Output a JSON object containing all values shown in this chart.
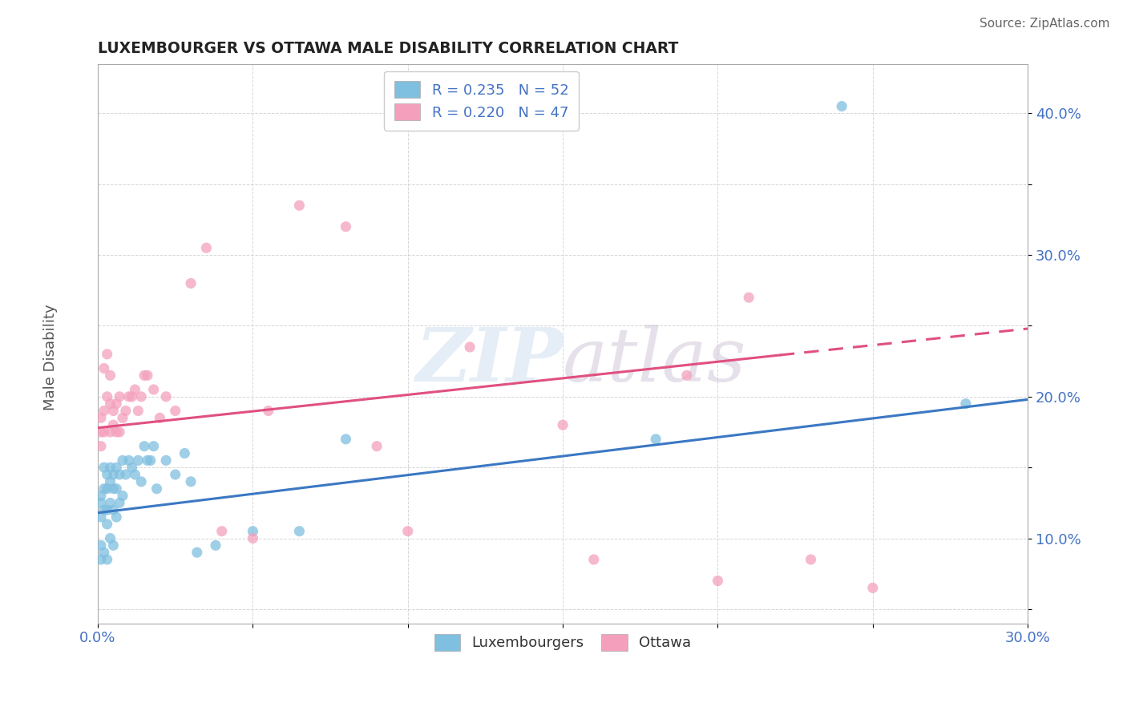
{
  "title": "LUXEMBOURGER VS OTTAWA MALE DISABILITY CORRELATION CHART",
  "source": "Source: ZipAtlas.com",
  "xlabel_label": "Luxembourgers",
  "ylabel_label": "Male Disability",
  "x_min": 0.0,
  "x_max": 0.3,
  "y_min": 0.04,
  "y_max": 0.435,
  "blue_R": 0.235,
  "blue_N": 52,
  "pink_R": 0.22,
  "pink_N": 47,
  "blue_color": "#7fbfdf",
  "pink_color": "#f4a0bc",
  "blue_line_color": "#3b78c3",
  "pink_line_color": "#e05080",
  "blue_line_start_y": 0.118,
  "blue_line_end_y": 0.198,
  "pink_line_start_y": 0.178,
  "pink_line_end_y": 0.248,
  "blue_scatter_x": [
    0.001,
    0.001,
    0.001,
    0.001,
    0.001,
    0.002,
    0.002,
    0.002,
    0.002,
    0.003,
    0.003,
    0.003,
    0.003,
    0.003,
    0.004,
    0.004,
    0.004,
    0.004,
    0.005,
    0.005,
    0.005,
    0.005,
    0.006,
    0.006,
    0.006,
    0.007,
    0.007,
    0.008,
    0.008,
    0.009,
    0.01,
    0.011,
    0.012,
    0.013,
    0.014,
    0.015,
    0.016,
    0.017,
    0.018,
    0.019,
    0.022,
    0.025,
    0.028,
    0.03,
    0.032,
    0.038,
    0.05,
    0.065,
    0.08,
    0.18,
    0.24,
    0.28
  ],
  "blue_scatter_y": [
    0.13,
    0.125,
    0.115,
    0.095,
    0.085,
    0.15,
    0.135,
    0.12,
    0.09,
    0.145,
    0.135,
    0.12,
    0.11,
    0.085,
    0.15,
    0.14,
    0.125,
    0.1,
    0.145,
    0.135,
    0.12,
    0.095,
    0.15,
    0.135,
    0.115,
    0.145,
    0.125,
    0.155,
    0.13,
    0.145,
    0.155,
    0.15,
    0.145,
    0.155,
    0.14,
    0.165,
    0.155,
    0.155,
    0.165,
    0.135,
    0.155,
    0.145,
    0.16,
    0.14,
    0.09,
    0.095,
    0.105,
    0.105,
    0.17,
    0.17,
    0.405,
    0.195
  ],
  "pink_scatter_x": [
    0.001,
    0.001,
    0.001,
    0.002,
    0.002,
    0.002,
    0.003,
    0.003,
    0.004,
    0.004,
    0.004,
    0.005,
    0.005,
    0.006,
    0.006,
    0.007,
    0.007,
    0.008,
    0.009,
    0.01,
    0.011,
    0.012,
    0.013,
    0.014,
    0.015,
    0.016,
    0.018,
    0.02,
    0.022,
    0.025,
    0.03,
    0.035,
    0.04,
    0.05,
    0.055,
    0.065,
    0.08,
    0.09,
    0.1,
    0.12,
    0.15,
    0.16,
    0.19,
    0.2,
    0.21,
    0.23,
    0.25
  ],
  "pink_scatter_y": [
    0.185,
    0.175,
    0.165,
    0.22,
    0.19,
    0.175,
    0.23,
    0.2,
    0.215,
    0.195,
    0.175,
    0.19,
    0.18,
    0.195,
    0.175,
    0.2,
    0.175,
    0.185,
    0.19,
    0.2,
    0.2,
    0.205,
    0.19,
    0.2,
    0.215,
    0.215,
    0.205,
    0.185,
    0.2,
    0.19,
    0.28,
    0.305,
    0.105,
    0.1,
    0.19,
    0.335,
    0.32,
    0.165,
    0.105,
    0.235,
    0.18,
    0.085,
    0.215,
    0.07,
    0.27,
    0.085,
    0.065
  ],
  "ytick_labels": [
    "",
    "10.0%",
    "",
    "20.0%",
    "",
    "30.0%",
    "",
    "40.0%"
  ],
  "ytick_values": [
    0.05,
    0.1,
    0.15,
    0.2,
    0.25,
    0.3,
    0.35,
    0.4
  ],
  "xtick_values": [
    0.0,
    0.05,
    0.1,
    0.15,
    0.2,
    0.25,
    0.3
  ],
  "xtick_labels": [
    "0.0%",
    "",
    "",
    "",
    "",
    "",
    "30.0%"
  ]
}
